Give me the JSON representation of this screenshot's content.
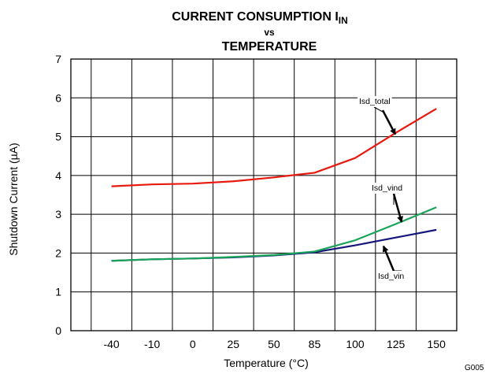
{
  "chart_data": {
    "type": "line",
    "title_main": "CURRENT CONSUMPTION I",
    "title_sub": "IN",
    "title_line2": "vs",
    "title_line3": "TEMPERATURE",
    "xlabel": "Temperature (°C)",
    "ylabel": "Shutdown Current (µA)",
    "categories": [
      "-40",
      "-10",
      "0",
      "25",
      "50",
      "85",
      "100",
      "125",
      "150"
    ],
    "yticks": [
      "0",
      "1",
      "2",
      "3",
      "4",
      "5",
      "6",
      "7"
    ],
    "ylim": [
      0,
      7
    ],
    "grid": true,
    "series": [
      {
        "name": "Isd_total",
        "color": "#e8190f",
        "values": [
          3.72,
          3.77,
          3.79,
          3.85,
          3.95,
          4.07,
          4.45,
          5.1,
          5.72
        ]
      },
      {
        "name": "Isd_vind",
        "color": "#1aa35a",
        "values": [
          1.8,
          1.84,
          1.86,
          1.9,
          1.95,
          2.04,
          2.33,
          2.75,
          3.18
        ]
      },
      {
        "name": "Isd_vin",
        "color": "#14147a",
        "values": [
          1.8,
          1.84,
          1.86,
          1.89,
          1.94,
          2.02,
          2.2,
          2.4,
          2.6
        ]
      }
    ],
    "annotations": [
      "Isd_total",
      "Isd_vind",
      "Isd_vin"
    ],
    "figure_code": "G005"
  }
}
